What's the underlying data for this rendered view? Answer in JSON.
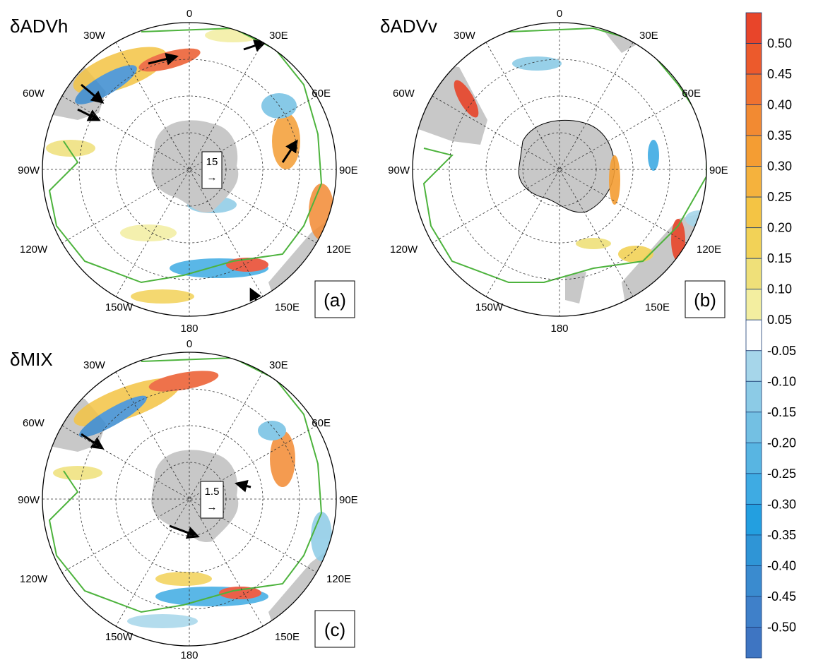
{
  "panels": [
    {
      "title": "δADVh",
      "tag": "(a)",
      "scale_value": "15",
      "scale_arrow": "→",
      "lon_labels": [
        "0",
        "30E",
        "60E",
        "90E",
        "120E",
        "150E",
        "180",
        "150W",
        "120W",
        "90W",
        "60W",
        "30W"
      ]
    },
    {
      "title": "δADVv",
      "tag": "(b)",
      "lon_labels": [
        "0",
        "30E",
        "60E",
        "90E",
        "120E",
        "150E",
        "180",
        "150W",
        "120W",
        "90W",
        "60W",
        "30W"
      ]
    },
    {
      "title": "δMIX",
      "tag": "(c)",
      "scale_value": "1.5",
      "scale_arrow": "→",
      "lon_labels": [
        "0",
        "30E",
        "60E",
        "90E",
        "120E",
        "150E",
        "180",
        "150W",
        "120W",
        "90W",
        "60W",
        "30W"
      ]
    }
  ],
  "colorbar": {
    "labels": [
      "0.50",
      "0.45",
      "0.40",
      "0.35",
      "0.30",
      "0.25",
      "0.20",
      "0.15",
      "0.10",
      "0.05",
      "-0.05",
      "-0.10",
      "-0.15",
      "-0.20",
      "-0.25",
      "-0.30",
      "-0.35",
      "-0.40",
      "-0.45",
      "-0.50"
    ],
    "colors": [
      "#e8452a",
      "#ec5a2c",
      "#ef7230",
      "#f28a32",
      "#f49d33",
      "#f5b23d",
      "#f4c444",
      "#f2d257",
      "#efe079",
      "#f3eea0",
      "#ffffff",
      "#a6d6ea",
      "#8ccbe6",
      "#73c0e3",
      "#58b5e2",
      "#3eabe3",
      "#239fe0",
      "#2f95d6",
      "#3a8bcf",
      "#3f80c9",
      "#3e75c2"
    ]
  },
  "colors": {
    "land": "#c8c8c8",
    "front": "#4db33d",
    "grid": "#333333"
  }
}
